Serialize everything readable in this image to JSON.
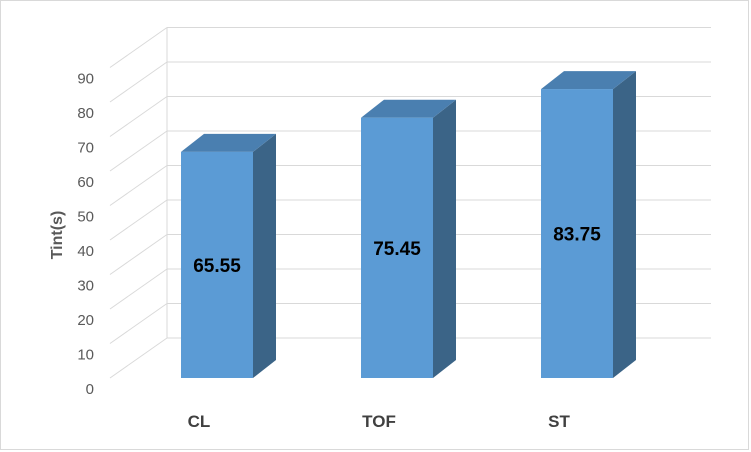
{
  "chart_data": {
    "type": "bar",
    "categories": [
      "CL",
      "TOF",
      "ST"
    ],
    "values": [
      65.55,
      75.45,
      83.75
    ],
    "data_labels": [
      "65.55",
      "75.45",
      "83.75"
    ],
    "title": "",
    "xlabel": "",
    "ylabel": "Tint(s)",
    "ylim": [
      0,
      90
    ],
    "yticks": [
      0,
      10,
      20,
      30,
      40,
      50,
      60,
      70,
      80,
      90
    ],
    "ytick_labels": [
      "0",
      "10",
      "20",
      "30",
      "40",
      "50",
      "60",
      "70",
      "80",
      "90"
    ],
    "grid": true,
    "legend": "none",
    "style": "3d-column",
    "colors": {
      "front": "#5b9bd5",
      "side": "#3b6487",
      "top": "#4a7fb0",
      "grid": "#d9d9d9"
    }
  }
}
